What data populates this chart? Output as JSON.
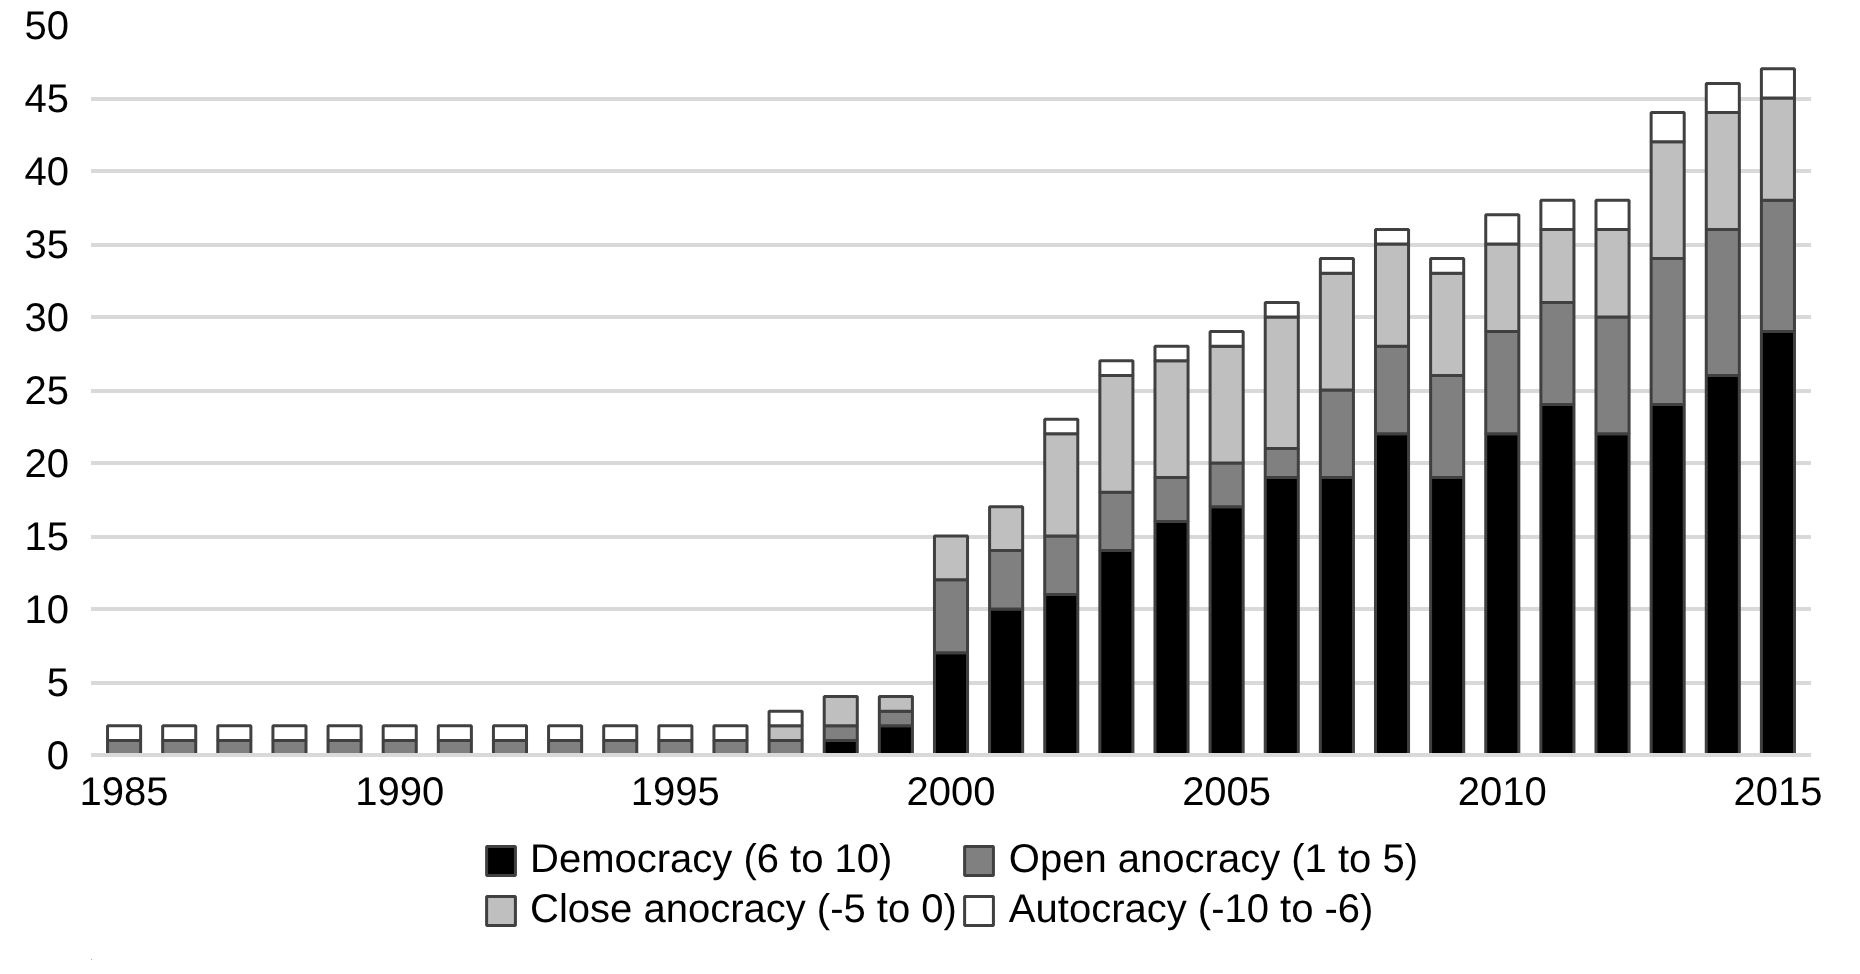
{
  "chart_data": {
    "type": "bar",
    "stacked": true,
    "x": [
      1985,
      1986,
      1987,
      1988,
      1989,
      1990,
      1991,
      1992,
      1993,
      1994,
      1995,
      1996,
      1997,
      1998,
      1999,
      2000,
      2001,
      2002,
      2003,
      2004,
      2005,
      2006,
      2007,
      2008,
      2009,
      2010,
      2011,
      2012,
      2013,
      2014,
      2015
    ],
    "series": [
      {
        "name": "Democracy (6 to 10)",
        "color": "#000000",
        "values": [
          0,
          0,
          0,
          0,
          0,
          0,
          0,
          0,
          0,
          0,
          0,
          0,
          0,
          1,
          2,
          7,
          10,
          11,
          14,
          16,
          17,
          19,
          19,
          22,
          19,
          22,
          24,
          22,
          24,
          26,
          29
        ]
      },
      {
        "name": "Open anocracy (1 to 5)",
        "color": "#808080",
        "values": [
          1,
          1,
          1,
          1,
          1,
          1,
          1,
          1,
          1,
          1,
          1,
          1,
          1,
          1,
          1,
          5,
          4,
          4,
          4,
          3,
          3,
          2,
          6,
          6,
          7,
          7,
          7,
          8,
          10,
          10,
          9
        ]
      },
      {
        "name": "Close anocracy (-5 to 0)",
        "color": "#bfbfbf",
        "values": [
          0,
          0,
          0,
          0,
          0,
          0,
          0,
          0,
          0,
          0,
          0,
          0,
          1,
          2,
          1,
          3,
          3,
          7,
          8,
          8,
          8,
          9,
          8,
          7,
          7,
          6,
          5,
          6,
          8,
          8,
          7
        ]
      },
      {
        "name": "Autocracy (-10 to -6)",
        "color": "#ffffff",
        "values": [
          1,
          1,
          1,
          1,
          1,
          1,
          1,
          1,
          1,
          1,
          1,
          1,
          1,
          0,
          0,
          0,
          0,
          1,
          1,
          1,
          1,
          1,
          1,
          1,
          1,
          2,
          2,
          2,
          2,
          2,
          2
        ]
      }
    ],
    "xlim": [
      1984.4,
      2015.6
    ],
    "xticks": [
      1985,
      1990,
      1995,
      2000,
      2005,
      2010,
      2015
    ],
    "ylim": [
      0,
      50
    ],
    "yticks": [
      0,
      5,
      10,
      15,
      20,
      25,
      30,
      35,
      40,
      45,
      50
    ],
    "grid": "y",
    "legend": "bottom"
  }
}
